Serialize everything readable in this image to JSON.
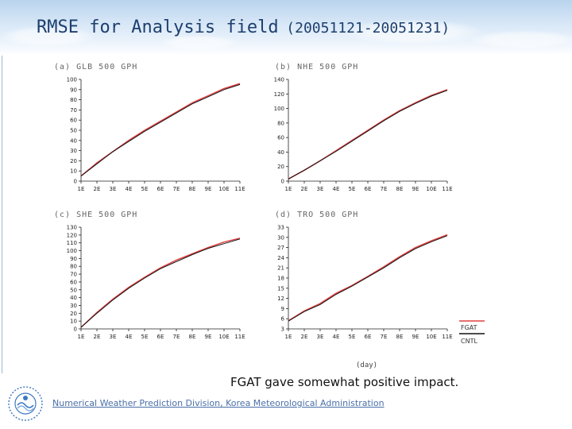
{
  "title": {
    "main": "RMSE for Analysis field",
    "sub": "(20051121-20051231)"
  },
  "chart_data": [
    {
      "type": "line",
      "title": "(a) GLB 500 GPH",
      "x": [
        "1E",
        "2E",
        "3E",
        "4E",
        "5E",
        "6E",
        "7E",
        "8E",
        "9E",
        "10E",
        "11E"
      ],
      "yticks": [
        0,
        10,
        20,
        30,
        40,
        50,
        60,
        70,
        80,
        90,
        100
      ],
      "ylim": [
        0,
        100
      ],
      "series": [
        {
          "name": "FGAT",
          "color": "#e04040",
          "values": [
            5,
            18,
            29,
            40,
            50,
            59,
            68,
            77,
            84,
            91,
            96
          ]
        },
        {
          "name": "CNTL",
          "color": "#111111",
          "values": [
            5,
            17,
            29,
            39,
            49,
            58,
            67,
            76,
            83,
            90,
            95
          ]
        }
      ]
    },
    {
      "type": "line",
      "title": "(b) NHE 500 GPH",
      "x": [
        "1E",
        "2E",
        "3E",
        "4E",
        "5E",
        "6E",
        "7E",
        "8E",
        "9E",
        "10E",
        "11E"
      ],
      "yticks": [
        0,
        20,
        40,
        60,
        80,
        100,
        120,
        140
      ],
      "ylim": [
        0,
        140
      ],
      "series": [
        {
          "name": "FGAT",
          "color": "#e04040",
          "values": [
            3,
            15,
            28,
            42,
            56,
            70,
            84,
            97,
            108,
            118,
            126
          ]
        },
        {
          "name": "CNTL",
          "color": "#111111",
          "values": [
            3,
            15,
            28,
            41,
            55,
            69,
            83,
            96,
            107,
            117,
            125
          ]
        }
      ]
    },
    {
      "type": "line",
      "title": "(c) SHE 500 GPH",
      "x": [
        "1E",
        "2E",
        "3E",
        "4E",
        "5E",
        "6E",
        "7E",
        "8E",
        "9E",
        "10E",
        "11E"
      ],
      "yticks": [
        0,
        10,
        20,
        30,
        40,
        50,
        60,
        70,
        80,
        90,
        100,
        110,
        120,
        130
      ],
      "ylim": [
        0,
        130
      ],
      "series": [
        {
          "name": "FGAT",
          "color": "#e04040",
          "values": [
            2,
            21,
            38,
            53,
            66,
            78,
            88,
            96,
            104,
            111,
            116
          ]
        },
        {
          "name": "CNTL",
          "color": "#111111",
          "values": [
            2,
            20,
            37,
            52,
            65,
            77,
            86,
            95,
            103,
            109,
            115
          ]
        }
      ]
    },
    {
      "type": "line",
      "title": "(d) TRO 500 GPH",
      "x": [
        "1E",
        "2E",
        "3E",
        "4E",
        "5E",
        "6E",
        "7E",
        "8E",
        "9E",
        "10E",
        "11E"
      ],
      "yticks": [
        3,
        6,
        9,
        12,
        15,
        18,
        21,
        24,
        27,
        30,
        33
      ],
      "ylim": [
        3,
        33
      ],
      "series": [
        {
          "name": "FGAT",
          "color": "#e04040",
          "values": [
            5.4,
            8.3,
            10.5,
            13.5,
            15.8,
            18.5,
            21.3,
            24.3,
            27.0,
            29.0,
            30.8
          ]
        },
        {
          "name": "CNTL",
          "color": "#111111",
          "values": [
            5.3,
            8.1,
            10.2,
            13.2,
            15.6,
            18.3,
            21.0,
            24.0,
            26.7,
            28.7,
            30.5
          ]
        }
      ]
    }
  ],
  "xlabel": "(day)",
  "legend": {
    "items": [
      "FGAT",
      "CNTL"
    ],
    "colors": [
      "#e04040",
      "#111111"
    ]
  },
  "conclusion": "FGAT gave somewhat positive impact.",
  "footer": "Numerical Weather Prediction Division,  Korea Meteorological Administration"
}
